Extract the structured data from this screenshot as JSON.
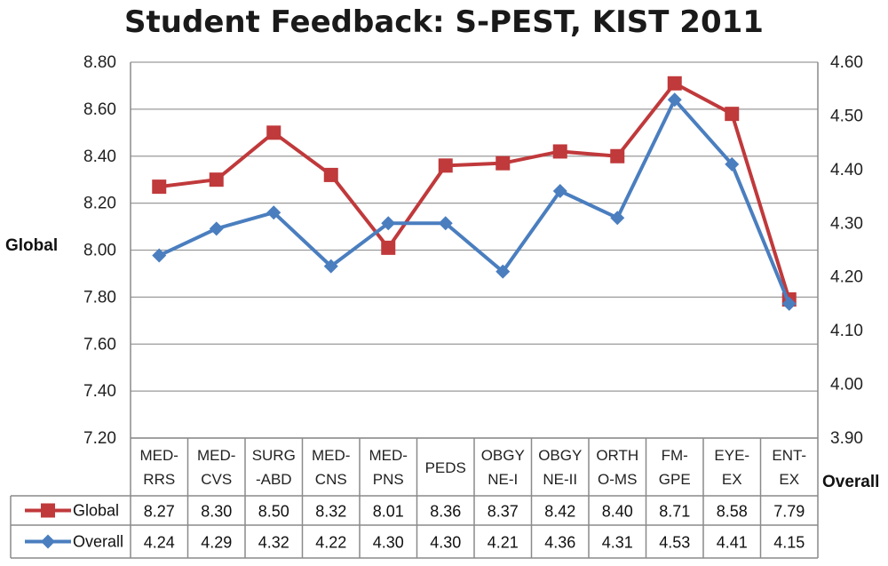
{
  "chart_data": {
    "type": "line",
    "title": "Student Feedback: S-PEST, KIST 2011",
    "ylabel_left": "Global",
    "ylabel_right": "Overall",
    "ylim_left": [
      7.2,
      8.8
    ],
    "ylim_right": [
      3.9,
      4.6
    ],
    "yticks_left": [
      "7.20",
      "7.40",
      "7.60",
      "7.80",
      "8.00",
      "8.20",
      "8.40",
      "8.60",
      "8.80"
    ],
    "yticks_right": [
      "3.90",
      "4.00",
      "4.10",
      "4.20",
      "4.30",
      "4.40",
      "4.50",
      "4.60"
    ],
    "grid": true,
    "categories": [
      [
        "MED-",
        "RRS"
      ],
      [
        "MED-",
        "CVS"
      ],
      [
        "SURG",
        "-ABD"
      ],
      [
        "MED-",
        "CNS"
      ],
      [
        "MED-",
        "PNS"
      ],
      [
        "PEDS"
      ],
      [
        "OBGY",
        "NE-I"
      ],
      [
        "OBGY",
        "NE-II"
      ],
      [
        "ORTH",
        "O-MS"
      ],
      [
        "FM-",
        "GPE"
      ],
      [
        "EYE-",
        "EX"
      ],
      [
        "ENT-",
        "EX"
      ]
    ],
    "series": [
      {
        "name": "Global",
        "axis": "left",
        "color": "#c0393b",
        "marker": "square",
        "values": [
          8.27,
          8.3,
          8.5,
          8.32,
          8.01,
          8.36,
          8.37,
          8.42,
          8.4,
          8.71,
          8.58,
          7.79
        ],
        "labels": [
          "8.27",
          "8.30",
          "8.50",
          "8.32",
          "8.01",
          "8.36",
          "8.37",
          "8.42",
          "8.40",
          "8.71",
          "8.58",
          "7.79"
        ]
      },
      {
        "name": "Overall",
        "axis": "right",
        "color": "#4a7ebf",
        "marker": "diamond",
        "values": [
          4.24,
          4.29,
          4.32,
          4.22,
          4.3,
          4.3,
          4.21,
          4.36,
          4.31,
          4.53,
          4.41,
          4.15
        ],
        "labels": [
          "4.24",
          "4.29",
          "4.32",
          "4.22",
          "4.30",
          "4.30",
          "4.21",
          "4.36",
          "4.31",
          "4.53",
          "4.41",
          "4.15"
        ]
      }
    ]
  }
}
